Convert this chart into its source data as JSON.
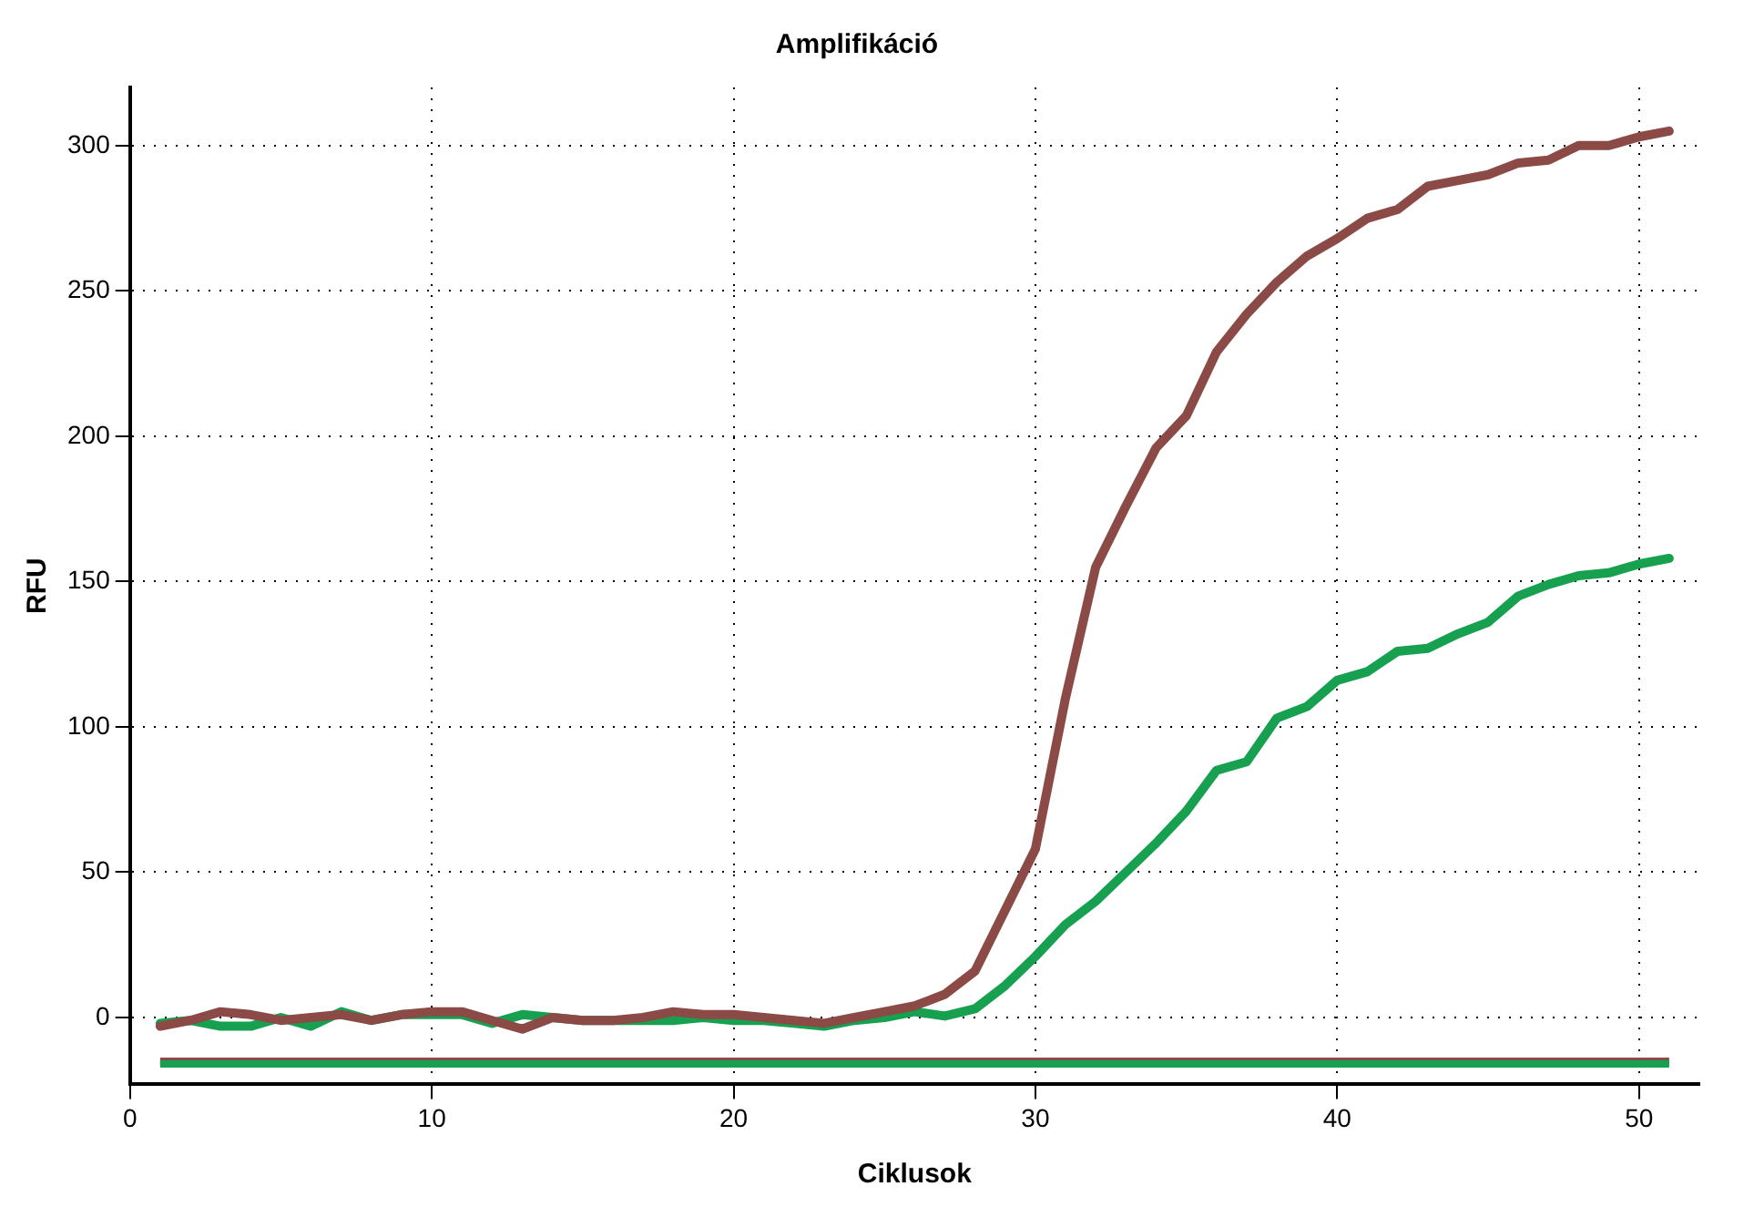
{
  "chart_data": {
    "type": "line",
    "title": "Amplifikáció",
    "xlabel": "Ciklusok",
    "ylabel": "RFU",
    "x": [
      1,
      2,
      3,
      4,
      5,
      6,
      7,
      8,
      9,
      10,
      11,
      12,
      13,
      14,
      15,
      16,
      17,
      18,
      19,
      20,
      21,
      22,
      23,
      24,
      25,
      26,
      27,
      28,
      29,
      30,
      31,
      32,
      33,
      34,
      35,
      36,
      37,
      38,
      39,
      40,
      41,
      42,
      43,
      44,
      45,
      46,
      47,
      48,
      49,
      50,
      51
    ],
    "series": [
      {
        "color": "#8b4a45",
        "values": [
          -3,
          -1,
          2,
          1,
          -1,
          0,
          1,
          -1,
          1,
          2,
          2,
          -1,
          -4,
          0,
          -1,
          -1,
          0,
          2,
          1,
          1,
          0,
          -1,
          -2,
          0,
          2,
          4,
          8,
          16,
          37,
          58,
          110,
          155,
          176,
          196,
          207,
          229,
          242,
          253,
          262,
          268,
          275,
          278,
          286,
          288,
          290,
          294,
          295,
          300,
          300,
          303,
          305
        ]
      },
      {
        "color": "#16a050",
        "values": [
          -2,
          -1,
          -3,
          -3,
          0,
          -3,
          2,
          -1,
          1,
          1,
          1,
          -2,
          1,
          0,
          -1,
          -1,
          -1,
          -1,
          0,
          -1,
          -1,
          -2,
          -3,
          -1,
          0,
          2,
          0.5,
          3,
          11,
          21,
          32,
          40,
          50,
          60,
          71,
          85,
          88,
          103,
          107,
          116,
          119,
          126,
          127,
          132,
          136,
          145,
          149,
          152,
          153,
          156,
          158
        ]
      }
    ],
    "ref_lines": [
      {
        "axis": "y",
        "value": -15,
        "color": "#8b4a45"
      },
      {
        "axis": "y",
        "value": -16,
        "color": "#16a050"
      }
    ],
    "xlim": [
      0,
      52
    ],
    "xticks": [
      0,
      10,
      20,
      30,
      40,
      50
    ],
    "ylim": [
      -23,
      320
    ],
    "yticks": [
      0,
      50,
      100,
      150,
      200,
      250,
      300
    ],
    "grid": true,
    "legend": false,
    "marker": "none",
    "line_style": "solid"
  }
}
